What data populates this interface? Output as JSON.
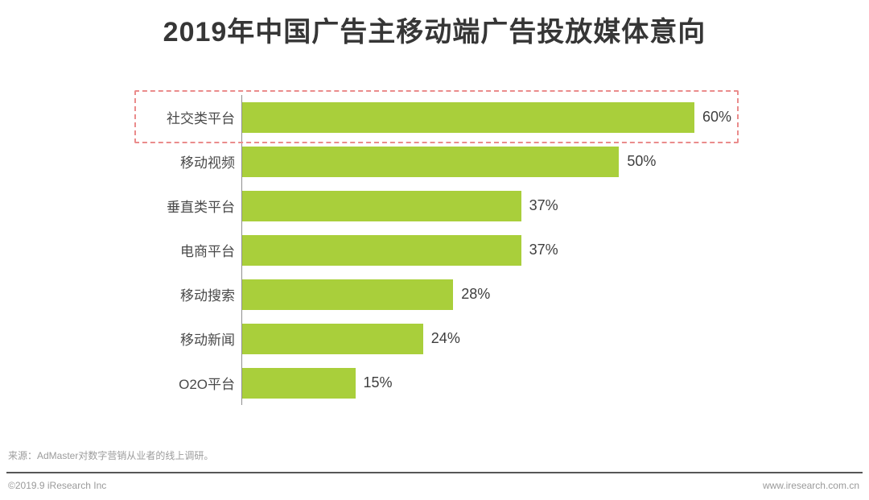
{
  "title": "2019年中国广告主移动端广告投放媒体意向",
  "chart_data": {
    "type": "bar",
    "orientation": "horizontal",
    "title": "2019年中国广告主移动端广告投放媒体意向",
    "categories": [
      "社交类平台",
      "移动视频",
      "垂直类平台",
      "电商平台",
      "移动搜索",
      "移动新闻",
      "O2O平台"
    ],
    "values": [
      60,
      50,
      37,
      37,
      28,
      24,
      15
    ],
    "unit": "%",
    "value_labels": [
      "60%",
      "50%",
      "37%",
      "37%",
      "28%",
      "24%",
      "15%"
    ],
    "xlim": [
      0,
      65
    ],
    "grid": false,
    "legend": false,
    "bar_color": "#a9cf3b",
    "highlight_category": "社交类平台",
    "highlight_box_color": "#ea8c8c",
    "axis_line_color": "#8f8f8f"
  },
  "source": "来源：AdMaster对数字营销从业者的线上调研。",
  "footer": {
    "copyright": "©2019.9 iResearch Inc",
    "website": "www.iresearch.com.cn"
  },
  "colors": {
    "title_text": "#363636",
    "label_text": "#4a4a4a",
    "value_text": "#3e3e3e",
    "muted_text": "#9a9a9a",
    "divider": "#565656"
  }
}
